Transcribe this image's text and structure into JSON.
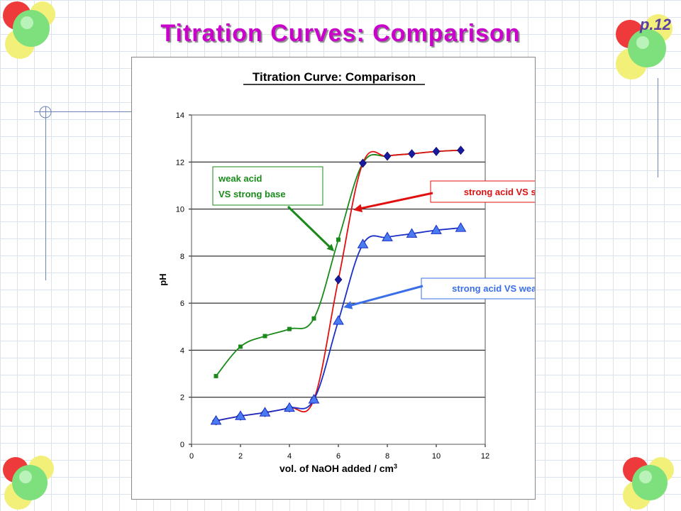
{
  "slide": {
    "title": "Titration Curves:  Comparison",
    "page_number": "p.12"
  },
  "chart_data": {
    "type": "line",
    "title": "Titration Curve:  Comparison",
    "xlabel": "vol. of NaOH added / cm",
    "xlabel_superscript": "3",
    "ylabel": "pH",
    "xlim": [
      0,
      12
    ],
    "ylim": [
      0,
      14
    ],
    "xticks": [
      0,
      2,
      4,
      6,
      8,
      10,
      12
    ],
    "yticks": [
      0,
      2,
      4,
      6,
      8,
      10,
      12,
      14
    ],
    "grid": "horizontal",
    "series": [
      {
        "label_key": "weak_vs_strong",
        "color": "#1a8a1a",
        "marker": "square",
        "x": [
          1,
          2,
          3,
          4,
          5,
          6,
          7,
          8,
          9,
          10,
          11
        ],
        "y": [
          2.9,
          4.15,
          4.6,
          4.9,
          5.35,
          8.7,
          11.95,
          12.25,
          12.35,
          12.45,
          12.5
        ]
      },
      {
        "label_key": "strong_vs_strong",
        "color": "#e01010",
        "marker": "diamond",
        "x": [
          1,
          2,
          3,
          4,
          5,
          6,
          7,
          8,
          9,
          10,
          11
        ],
        "y": [
          1.0,
          1.2,
          1.35,
          1.55,
          1.9,
          7.0,
          11.95,
          12.25,
          12.35,
          12.45,
          12.5
        ]
      },
      {
        "label_key": "strong_vs_weak",
        "color": "#1a2ec8",
        "marker": "triangle",
        "x": [
          1,
          2,
          3,
          4,
          5,
          6,
          7,
          8,
          9,
          10,
          11
        ],
        "y": [
          1.0,
          1.2,
          1.35,
          1.55,
          1.9,
          5.25,
          8.5,
          8.8,
          8.95,
          9.1,
          9.2
        ]
      }
    ],
    "annotations": {
      "weak_vs_strong": {
        "line1": "weak acid",
        "line2": "VS strong base",
        "color": "#1a8a1a"
      },
      "strong_vs_strong": {
        "text": "strong acid VS strong base",
        "color": "#e01010"
      },
      "strong_vs_weak": {
        "text": "strong acid VS weak base",
        "color": "#3a6ee8"
      }
    }
  }
}
